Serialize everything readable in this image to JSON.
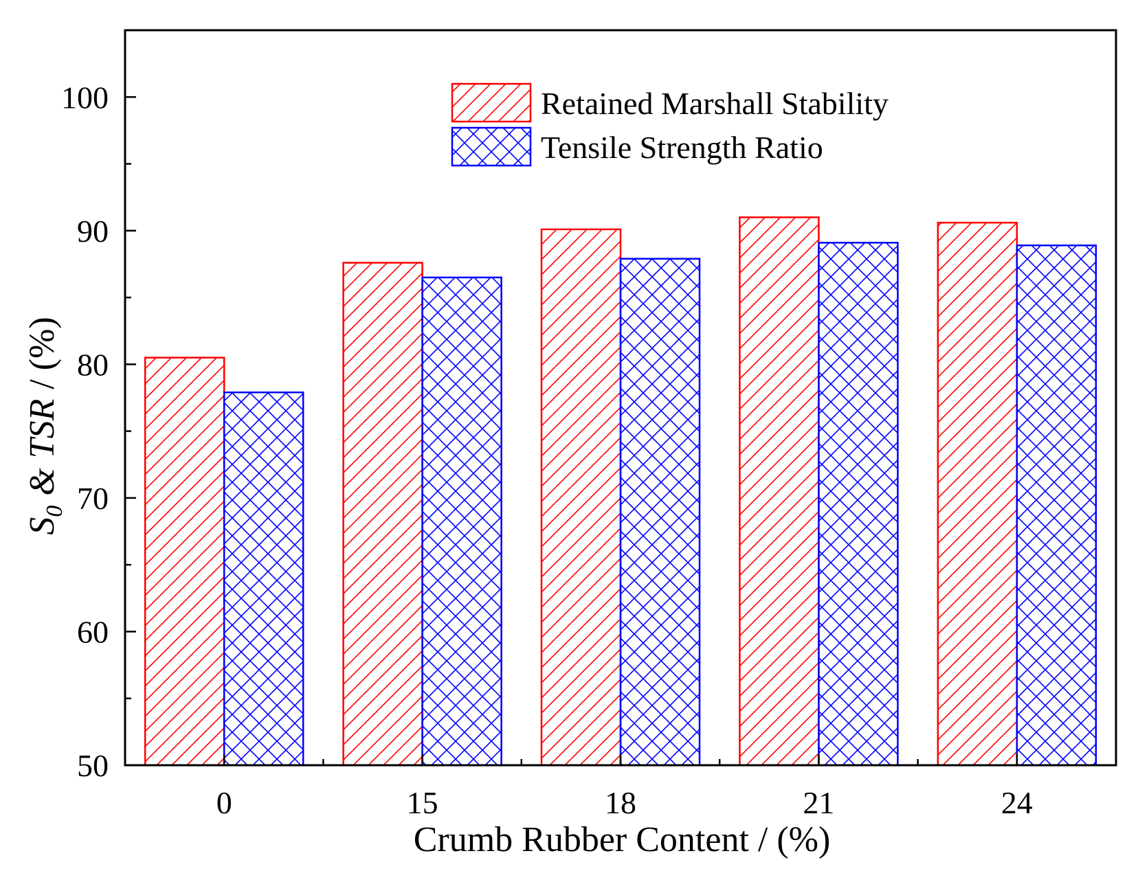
{
  "chart_data": {
    "type": "bar",
    "xlabel": "Crumb Rubber Content / (%)",
    "ylabel": {
      "s_main": "S",
      "s_sub": "0",
      "amp": "&",
      "tsr": "TSR",
      "unit": "/ (%)"
    },
    "categories": [
      "0",
      "15",
      "18",
      "21",
      "24"
    ],
    "ylim": [
      50,
      105
    ],
    "yticks": [
      50,
      60,
      70,
      80,
      90,
      100
    ],
    "grid": false,
    "legend_position": "top-right",
    "series": [
      {
        "name": "Retained Marshall Stability",
        "color": "#ff0000",
        "pattern": "diagonal-hatch",
        "values": [
          80.5,
          87.6,
          90.1,
          91.0,
          90.6
        ]
      },
      {
        "name": "Tensile Strength Ratio",
        "color": "#0000ff",
        "pattern": "cross-hatch",
        "values": [
          77.9,
          86.5,
          87.9,
          89.1,
          88.9
        ]
      }
    ]
  }
}
